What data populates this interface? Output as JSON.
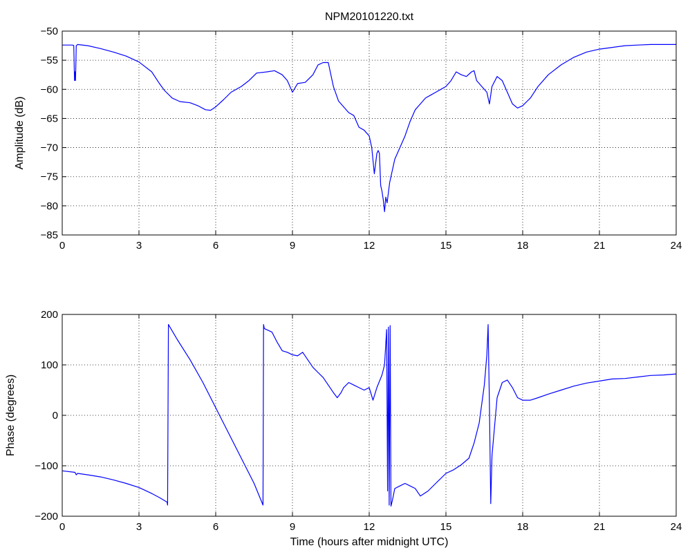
{
  "figure_title": "NPM20101220.txt",
  "colors": {
    "series": "#0000ff",
    "axes": "#000000",
    "background": "#ffffff"
  },
  "chart_data": [
    {
      "type": "line",
      "title": "NPM20101220.txt",
      "xlabel": "",
      "ylabel": "Amplitude (dB)",
      "xlim": [
        0,
        24
      ],
      "ylim": [
        -85,
        -50
      ],
      "xticks": [
        0,
        3,
        6,
        9,
        12,
        15,
        18,
        21,
        24
      ],
      "yticks": [
        -85,
        -80,
        -75,
        -70,
        -65,
        -60,
        -55,
        -50
      ],
      "xtick_labels": [
        "0",
        "3",
        "6",
        "9",
        "12",
        "15",
        "18",
        "21",
        "24"
      ],
      "ytick_labels": [
        "−85",
        "−80",
        "−75",
        "−70",
        "−65",
        "−60",
        "−55",
        "−50"
      ],
      "grid": true,
      "series": [
        {
          "x": [
            0,
            0.4,
            0.45,
            0.48,
            0.5,
            0.52,
            0.55,
            0.58,
            0.6,
            1.0,
            1.5,
            2.0,
            2.5,
            3.0,
            3.5,
            3.8,
            4.0,
            4.3,
            4.6,
            5.0,
            5.3,
            5.6,
            5.8,
            6.0,
            6.3,
            6.6,
            7.0,
            7.3,
            7.6,
            8.0,
            8.3,
            8.6,
            8.8,
            9.0,
            9.2,
            9.5,
            9.8,
            10.0,
            10.2,
            10.4,
            10.6,
            10.8,
            11.0,
            11.2,
            11.4,
            11.6,
            11.8,
            12.0,
            12.1,
            12.2,
            12.3,
            12.35,
            12.4,
            12.45,
            12.5,
            12.55,
            12.6,
            12.65,
            12.7,
            12.8,
            12.9,
            13.0,
            13.2,
            13.4,
            13.6,
            13.8,
            14.0,
            14.2,
            14.4,
            14.6,
            14.8,
            15.0,
            15.2,
            15.4,
            15.6,
            15.8,
            16.0,
            16.1,
            16.2,
            16.4,
            16.6,
            16.7,
            16.8,
            17.0,
            17.2,
            17.4,
            17.6,
            17.8,
            18.0,
            18.3,
            18.6,
            19.0,
            19.5,
            20.0,
            20.5,
            21.0,
            21.5,
            22.0,
            22.5,
            23.0,
            23.5,
            24.0
          ],
          "values": [
            -52.4,
            -52.4,
            -52.5,
            -58.5,
            -57,
            -58.5,
            -52.5,
            -52.4,
            -52.3,
            -52.5,
            -53.0,
            -53.6,
            -54.3,
            -55.3,
            -57.0,
            -59.0,
            -60.2,
            -61.5,
            -62.1,
            -62.3,
            -62.8,
            -63.5,
            -63.6,
            -63.0,
            -61.8,
            -60.5,
            -59.5,
            -58.5,
            -57.2,
            -57.0,
            -56.8,
            -57.5,
            -58.5,
            -60.5,
            -59.0,
            -58.8,
            -57.5,
            -55.8,
            -55.4,
            -55.4,
            -59.5,
            -62.0,
            -63.0,
            -64.0,
            -64.5,
            -66.5,
            -67.0,
            -68.0,
            -70.0,
            -74.5,
            -71.0,
            -70.5,
            -71.0,
            -76.5,
            -77.5,
            -79.0,
            -81.0,
            -78.5,
            -79.5,
            -76.0,
            -74.0,
            -72.0,
            -70.0,
            -68.0,
            -65.5,
            -63.5,
            -62.5,
            -61.5,
            -61.0,
            -60.5,
            -60.0,
            -59.5,
            -58.5,
            -57.0,
            -57.5,
            -57.8,
            -57.0,
            -56.8,
            -58.5,
            -59.5,
            -60.5,
            -62.5,
            -59.5,
            -57.8,
            -58.5,
            -60.5,
            -62.5,
            -63.2,
            -62.8,
            -61.5,
            -59.5,
            -57.5,
            -55.8,
            -54.5,
            -53.6,
            -53.1,
            -52.8,
            -52.5,
            -52.4,
            -52.3,
            -52.3,
            -52.3
          ]
        }
      ]
    },
    {
      "type": "line",
      "title": "",
      "xlabel": "Time (hours after midnight UTC)",
      "ylabel": "Phase (degrees)",
      "xlim": [
        0,
        24
      ],
      "ylim": [
        -200,
        200
      ],
      "xticks": [
        0,
        3,
        6,
        9,
        12,
        15,
        18,
        21,
        24
      ],
      "yticks": [
        -200,
        -100,
        0,
        100,
        200
      ],
      "xtick_labels": [
        "0",
        "3",
        "6",
        "9",
        "12",
        "15",
        "18",
        "21",
        "24"
      ],
      "ytick_labels": [
        "−200",
        "−100",
        "0",
        "100",
        "200"
      ],
      "grid": true,
      "series": [
        {
          "x": [
            0,
            0.5,
            0.55,
            0.6,
            1.0,
            1.5,
            2.0,
            2.5,
            3.0,
            3.5,
            3.8,
            4.1,
            4.12,
            4.15,
            4.5,
            5.0,
            5.5,
            6.0,
            6.5,
            7.0,
            7.5,
            7.85,
            7.87,
            7.9,
            8.2,
            8.4,
            8.6,
            8.8,
            9.0,
            9.2,
            9.4,
            9.6,
            9.8,
            10.0,
            10.2,
            10.4,
            10.6,
            10.75,
            10.9,
            11.0,
            11.2,
            11.4,
            11.6,
            11.8,
            12.0,
            12.15,
            12.3,
            12.5,
            12.6,
            12.68,
            12.72,
            12.75,
            12.78,
            12.82,
            12.85,
            12.9,
            13.0,
            13.2,
            13.4,
            13.6,
            13.8,
            14.0,
            14.3,
            14.6,
            15.0,
            15.3,
            15.6,
            15.9,
            16.1,
            16.3,
            16.5,
            16.6,
            16.65,
            16.7,
            16.75,
            16.8,
            17.0,
            17.2,
            17.4,
            17.6,
            17.8,
            18.0,
            18.3,
            18.6,
            19.0,
            19.5,
            20.0,
            20.5,
            21.0,
            21.5,
            22.0,
            22.5,
            23.0,
            23.5,
            24.0
          ],
          "values": [
            -110,
            -113,
            -118,
            -115,
            -118,
            -122,
            -128,
            -135,
            -143,
            -155,
            -163,
            -172,
            -178,
            180,
            150,
            110,
            65,
            15,
            -35,
            -85,
            -135,
            -178,
            180,
            172,
            165,
            145,
            128,
            125,
            120,
            118,
            125,
            110,
            95,
            85,
            75,
            60,
            45,
            35,
            45,
            55,
            65,
            60,
            55,
            50,
            55,
            30,
            55,
            80,
            100,
            170,
            -150,
            175,
            -178,
            178,
            -180,
            -170,
            -145,
            -140,
            -135,
            -140,
            -145,
            -160,
            -150,
            -135,
            -115,
            -108,
            -98,
            -85,
            -55,
            -15,
            60,
            120,
            180,
            20,
            -175,
            -80,
            35,
            65,
            70,
            55,
            35,
            30,
            30,
            35,
            42,
            50,
            58,
            64,
            68,
            72,
            73,
            76,
            79,
            80,
            82
          ]
        }
      ]
    }
  ]
}
